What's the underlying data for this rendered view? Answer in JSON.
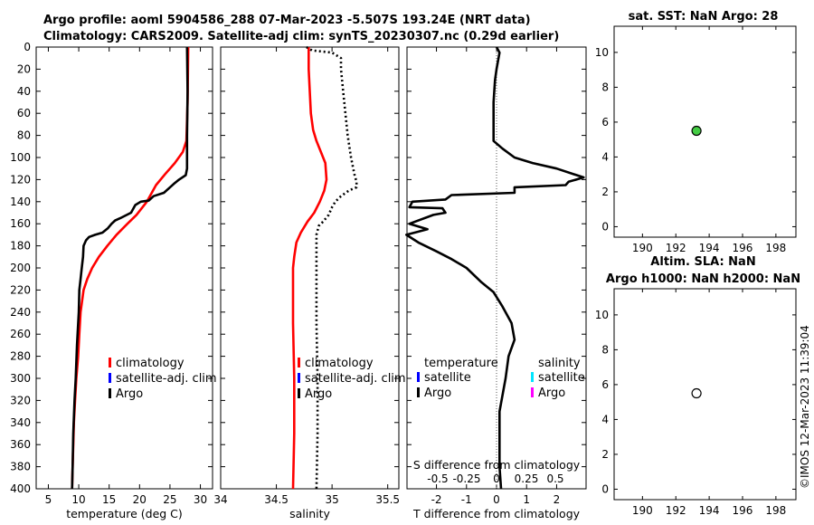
{
  "figure": {
    "title_line1": "Argo profile: aoml 5904586_288 07-Mar-2023 -5.507S 193.24E (NRT data)",
    "title_line2": "Climatology: CARS2009. Satellite-adj clim: synTS_20230307.nc (0.29d earlier)",
    "side_stamp": "©IMOS 12-Mar-2023 11:39:04",
    "colors": {
      "climatology": "#ff0000",
      "satellite": "#0000ff",
      "argo": "#000000",
      "sal_satellite": "#00e5ff",
      "sal_argo": "#ff00ff",
      "sst_marker": "#44cc44"
    }
  },
  "chart_data": [
    {
      "id": "temperature",
      "type": "line",
      "xlabel": "temperature (deg C)",
      "ylabel": "",
      "xlim": [
        3,
        32
      ],
      "ylim": [
        400,
        0
      ],
      "xticks": [
        5,
        10,
        15,
        20,
        25,
        30
      ],
      "yticks": [
        0,
        20,
        40,
        60,
        80,
        100,
        120,
        140,
        160,
        180,
        200,
        220,
        240,
        260,
        280,
        300,
        320,
        340,
        360,
        380,
        400
      ],
      "legend": {
        "position": "lower-right",
        "entries": [
          {
            "label": "climatology",
            "color": "#ff0000"
          },
          {
            "label": "satellite-adj. clim",
            "color": "#0000ff"
          },
          {
            "label": "Argo",
            "color": "#000000"
          }
        ]
      },
      "series": [
        {
          "name": "climatology",
          "color": "#ff0000",
          "style": "solid",
          "points": [
            [
              28,
              0
            ],
            [
              27.9,
              50
            ],
            [
              27.7,
              85
            ],
            [
              27.1,
              95
            ],
            [
              25.8,
              105
            ],
            [
              24.2,
              115
            ],
            [
              22.7,
              125
            ],
            [
              21.2,
              140
            ],
            [
              19.5,
              152
            ],
            [
              18,
              160
            ],
            [
              16.2,
              170
            ],
            [
              14.7,
              180
            ],
            [
              13.3,
              190
            ],
            [
              12.2,
              200
            ],
            [
              11.4,
              210
            ],
            [
              10.8,
              220
            ],
            [
              10.3,
              240
            ],
            [
              10.1,
              260
            ],
            [
              9.9,
              280
            ],
            [
              9.6,
              300
            ],
            [
              9.4,
              320
            ],
            [
              9.2,
              340
            ],
            [
              9.1,
              360
            ],
            [
              9.0,
              380
            ],
            [
              8.9,
              400
            ]
          ]
        },
        {
          "name": "Argo",
          "color": "#000000",
          "style": "solid",
          "points": [
            [
              27.8,
              0
            ],
            [
              27.9,
              40
            ],
            [
              27.8,
              80
            ],
            [
              27.8,
              110
            ],
            [
              27.6,
              116
            ],
            [
              26.5,
              120
            ],
            [
              25.6,
              124
            ],
            [
              24.8,
              128
            ],
            [
              24,
              132
            ],
            [
              22.3,
              135
            ],
            [
              21.5,
              139
            ],
            [
              20.2,
              140
            ],
            [
              19.3,
              143
            ],
            [
              18.6,
              150
            ],
            [
              16.8,
              155
            ],
            [
              16,
              157
            ],
            [
              15.4,
              160
            ],
            [
              14.8,
              164
            ],
            [
              13.9,
              168
            ],
            [
              12.7,
              170
            ],
            [
              11.7,
              172
            ],
            [
              11.2,
              175
            ],
            [
              10.8,
              180
            ],
            [
              10.7,
              190
            ],
            [
              10.5,
              200
            ],
            [
              10.3,
              210
            ],
            [
              10.1,
              220
            ],
            [
              10,
              240
            ],
            [
              9.7,
              270
            ],
            [
              9.5,
              300
            ],
            [
              9.3,
              320
            ],
            [
              9.1,
              350
            ],
            [
              9.0,
              380
            ],
            [
              8.9,
              400
            ]
          ]
        }
      ]
    },
    {
      "id": "salinity",
      "type": "line",
      "xlabel": "salinity",
      "ylabel": "",
      "xlim": [
        34,
        35.6
      ],
      "ylim": [
        400,
        0
      ],
      "xticks": [
        34,
        34.5,
        35,
        35.5
      ],
      "xtick_labels": [
        "34",
        "34.5",
        "35",
        "35.5"
      ],
      "legend": {
        "position": "lower-right",
        "entries": [
          {
            "label": "climatology",
            "color": "#ff0000"
          },
          {
            "label": "satellite-adj. clim",
            "color": "#0000ff"
          },
          {
            "label": "Argo",
            "color": "#000000"
          }
        ]
      },
      "series": [
        {
          "name": "climatology",
          "color": "#ff0000",
          "style": "solid",
          "points": [
            [
              34.79,
              0
            ],
            [
              34.79,
              20
            ],
            [
              34.8,
              40
            ],
            [
              34.81,
              60
            ],
            [
              34.83,
              75
            ],
            [
              34.86,
              85
            ],
            [
              34.9,
              95
            ],
            [
              34.94,
              105
            ],
            [
              34.95,
              120
            ],
            [
              34.93,
              130
            ],
            [
              34.89,
              140
            ],
            [
              34.84,
              150
            ],
            [
              34.78,
              158
            ],
            [
              34.72,
              168
            ],
            [
              34.68,
              177
            ],
            [
              34.66,
              190
            ],
            [
              34.65,
              200
            ],
            [
              34.65,
              250
            ],
            [
              34.66,
              300
            ],
            [
              34.66,
              350
            ],
            [
              34.65,
              400
            ]
          ]
        },
        {
          "name": "Argo",
          "color": "#000000",
          "style": "dotted",
          "points": [
            [
              34.77,
              0
            ],
            [
              34.82,
              3
            ],
            [
              35.0,
              5
            ],
            [
              35.08,
              10
            ],
            [
              35.08,
              20
            ],
            [
              35.1,
              40
            ],
            [
              35.12,
              60
            ],
            [
              35.14,
              80
            ],
            [
              35.17,
              100
            ],
            [
              35.2,
              115
            ],
            [
              35.22,
              122
            ],
            [
              35.22,
              127
            ],
            [
              35.15,
              130
            ],
            [
              35.08,
              135
            ],
            [
              35.03,
              140
            ],
            [
              35.0,
              145
            ],
            [
              34.97,
              152
            ],
            [
              34.92,
              158
            ],
            [
              34.88,
              162
            ],
            [
              34.86,
              170
            ],
            [
              34.86,
              180
            ],
            [
              34.86,
              200
            ],
            [
              34.86,
              250
            ],
            [
              34.87,
              300
            ],
            [
              34.87,
              350
            ],
            [
              34.86,
              400
            ]
          ]
        }
      ]
    },
    {
      "id": "difference",
      "type": "line",
      "xlabel": "T difference from climatology",
      "top_label": "S difference from climatology",
      "ylabel": "",
      "xlim": [
        -2.98,
        2.98
      ],
      "ylim": [
        400,
        0
      ],
      "xticks": [
        -2,
        -1,
        0,
        1,
        2
      ],
      "s_ticks": [
        "-0.5",
        "-0.25",
        "0",
        "0.25",
        "0.5"
      ],
      "legend": {
        "position": "lower-right",
        "temperature_header": "temperature",
        "salinity_header": "salinity",
        "temperature_entries": [
          {
            "label": "satellite",
            "color": "#0000ff"
          },
          {
            "label": "Argo",
            "color": "#000000"
          }
        ],
        "salinity_entries": [
          {
            "label": "satellite",
            "color": "#00e5ff"
          },
          {
            "label": "Argo",
            "color": "#ff00ff"
          }
        ]
      },
      "series": [
        {
          "name": "T difference Argo",
          "color": "#000000",
          "style": "solid",
          "points": [
            [
              0,
              0
            ],
            [
              0.1,
              5
            ],
            [
              0,
              20
            ],
            [
              -0.05,
              30
            ],
            [
              -0.1,
              50
            ],
            [
              -0.1,
              70
            ],
            [
              -0.1,
              80
            ],
            [
              -0.1,
              85
            ],
            [
              0.2,
              92
            ],
            [
              0.6,
              100
            ],
            [
              1.2,
              105
            ],
            [
              2,
              110
            ],
            [
              2.9,
              118
            ],
            [
              2.4,
              122
            ],
            [
              2.3,
              125
            ],
            [
              0.6,
              127
            ],
            [
              0.6,
              132
            ],
            [
              -1.5,
              134
            ],
            [
              -1.7,
              138
            ],
            [
              -2.8,
              140
            ],
            [
              -2.9,
              145
            ],
            [
              -1.8,
              146
            ],
            [
              -1.7,
              150
            ],
            [
              -2.1,
              152
            ],
            [
              -2.9,
              160
            ],
            [
              -2.3,
              165
            ],
            [
              -3,
              170
            ],
            [
              -2.6,
              177
            ],
            [
              -2,
              185
            ],
            [
              -1.5,
              192
            ],
            [
              -1,
              200
            ],
            [
              -0.5,
              213
            ],
            [
              -0.1,
              222
            ],
            [
              0.2,
              235
            ],
            [
              0.5,
              250
            ],
            [
              0.6,
              265
            ],
            [
              0.4,
              280
            ],
            [
              0.3,
              300
            ],
            [
              0.1,
              330
            ],
            [
              0.1,
              360
            ],
            [
              0.1,
              380
            ],
            [
              0.15,
              400
            ]
          ]
        }
      ]
    },
    {
      "id": "sst",
      "type": "scatter",
      "title": "sat. SST: NaN Argo: 28",
      "title_line2": "",
      "xlim": [
        188.3,
        199.2
      ],
      "ylim": [
        -0.6,
        11.5
      ],
      "xticks": [
        190,
        192,
        194,
        196,
        198
      ],
      "yticks": [
        0,
        2,
        4,
        6,
        8,
        10
      ],
      "points": [
        {
          "x": 193.24,
          "y": 5.5,
          "fill": "#44cc44"
        }
      ]
    },
    {
      "id": "sla",
      "type": "scatter",
      "title": "Altim. SLA: NaN",
      "title_line2": "Argo h1000: NaN h2000: NaN",
      "xlim": [
        188.3,
        199.2
      ],
      "ylim": [
        -0.6,
        11.5
      ],
      "xticks": [
        190,
        192,
        194,
        196,
        198
      ],
      "yticks": [
        0,
        2,
        4,
        6,
        8,
        10
      ],
      "points": [
        {
          "x": 193.24,
          "y": 5.5,
          "fill": "#ffffff"
        }
      ]
    }
  ]
}
